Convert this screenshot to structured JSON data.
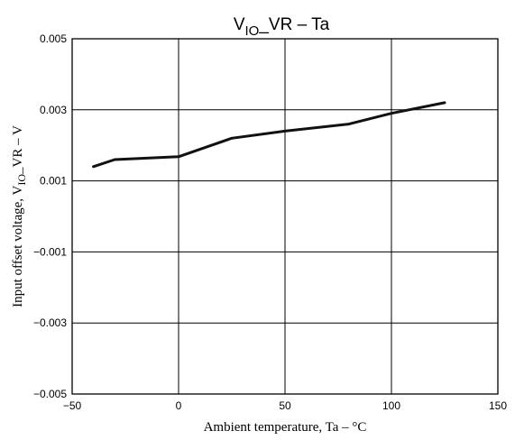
{
  "chart_data": {
    "type": "line",
    "title": {
      "main": "V",
      "sub": "IO",
      "tail": "_VR  –  Ta"
    },
    "xlabel": "Ambient temperature,  Ta  –  °C",
    "ylabel": {
      "pre": "Input offset voltage, V",
      "sub": "IO",
      "post": "_VR  –  V"
    },
    "xlim": [
      -50,
      150
    ],
    "ylim": [
      -0.005,
      0.005
    ],
    "x_ticks": [
      -50,
      0,
      50,
      100,
      150
    ],
    "x_tick_labels": [
      "−50",
      "0",
      "50",
      "100",
      "150"
    ],
    "y_ticks": [
      -0.005,
      -0.003,
      -0.001,
      0.001,
      0.003,
      0.005
    ],
    "y_tick_labels": [
      "−0.005",
      "−0.003",
      "−0.001",
      "0.001",
      "0.003",
      "0.005"
    ],
    "grid": true,
    "series": [
      {
        "x": [
          -40,
          -30,
          0,
          25,
          50,
          80,
          100,
          125
        ],
        "y": [
          0.0014,
          0.0016,
          0.00168,
          0.0022,
          0.0024,
          0.0026,
          0.0029,
          0.0032
        ]
      }
    ]
  }
}
